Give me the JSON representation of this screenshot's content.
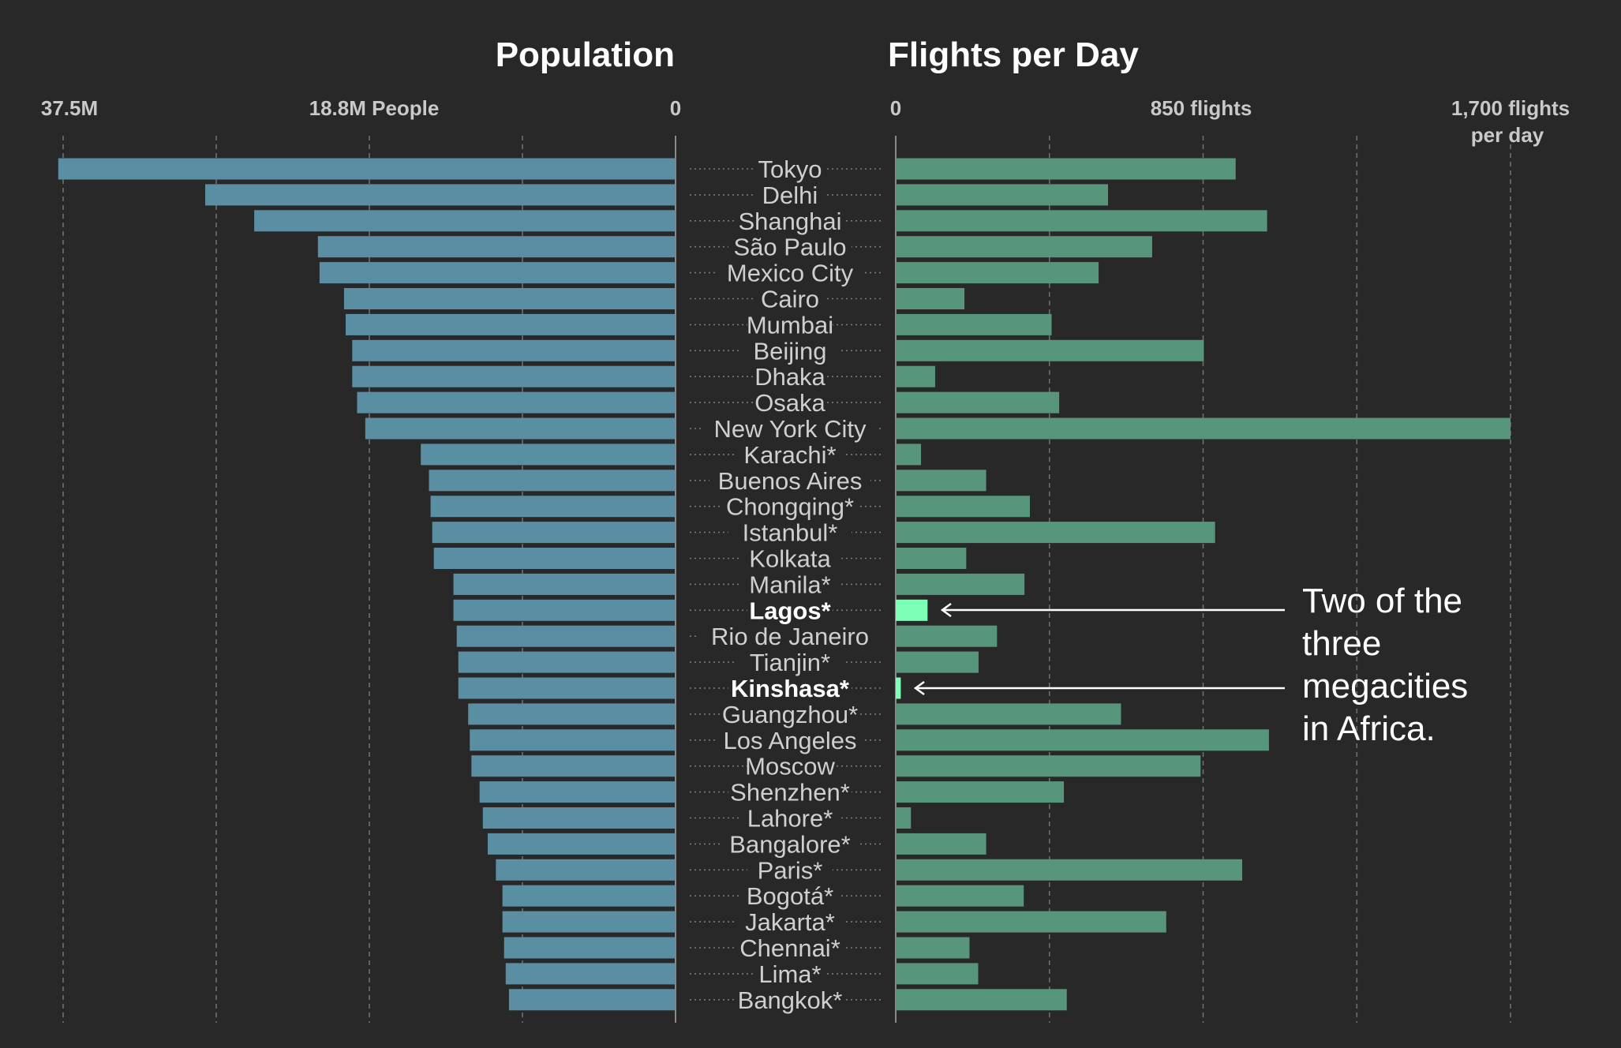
{
  "chart_data": {
    "type": "bar",
    "panels": [
      {
        "title": "Population",
        "tick_labels": [
          "37.5M",
          "18.8M People",
          "0"
        ],
        "color": "#5a8fa3",
        "xlim": [
          0,
          37.5
        ],
        "grid_values": [
          0,
          9.375,
          18.75,
          28.125,
          37.5
        ],
        "label_values": [
          37.5,
          18.75,
          0
        ]
      },
      {
        "title": "Flights per Day",
        "tick_labels": [
          "0",
          "850 flights",
          "1,700 flights",
          "per day"
        ],
        "color": "#58967c",
        "highlight_color": "#7dffb8",
        "xlim": [
          0,
          1700
        ],
        "grid_values": [
          0,
          425,
          850,
          1275,
          1700
        ],
        "label_values": [
          0,
          850,
          1700
        ]
      }
    ],
    "categories": [
      "Tokyo",
      "Delhi",
      "Shanghai",
      "São Paulo",
      "Mexico City",
      "Cairo",
      "Mumbai",
      "Beijing",
      "Dhaka",
      "Osaka",
      "New York City",
      "Karachi*",
      "Buenos Aires",
      "Chongqing*",
      "Istanbul*",
      "Kolkata",
      "Manila*",
      "Lagos*",
      "Rio de Janeiro",
      "Tianjin*",
      "Kinshasa*",
      "Guangzhou*",
      "Los Angeles",
      "Moscow",
      "Shenzhen*",
      "Lahore*",
      "Bangalore*",
      "Paris*",
      "Bogotá*",
      "Jakarta*",
      "Chennai*",
      "Lima*",
      "Bangkok*"
    ],
    "highlighted": [
      "Lagos*",
      "Kinshasa*"
    ],
    "series": [
      {
        "name": "Population",
        "values": [
          37.8,
          28.8,
          25.8,
          21.9,
          21.8,
          20.3,
          20.2,
          19.8,
          19.8,
          19.5,
          19.0,
          15.6,
          15.1,
          15.0,
          14.9,
          14.8,
          13.6,
          13.6,
          13.4,
          13.3,
          13.3,
          12.7,
          12.6,
          12.5,
          12.0,
          11.8,
          11.5,
          11.0,
          10.6,
          10.6,
          10.5,
          10.4,
          10.2
        ]
      },
      {
        "name": "Flights per Day",
        "values": [
          940,
          587,
          1027,
          709,
          561,
          190,
          431,
          852,
          109,
          452,
          1700,
          70,
          250,
          371,
          883,
          195,
          356,
          88,
          280,
          229,
          14,
          623,
          1032,
          843,
          465,
          42,
          250,
          958,
          354,
          748,
          204,
          228,
          473
        ]
      }
    ],
    "annotation": [
      "Two of the",
      "three",
      "megacities",
      "in Africa."
    ]
  }
}
